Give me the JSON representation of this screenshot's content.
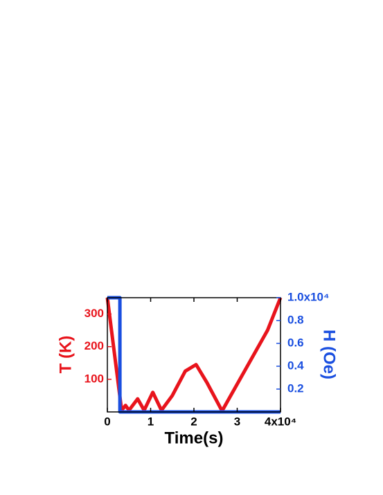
{
  "chart_data": {
    "type": "line",
    "xlabel": "Time(s)",
    "ylabel": "T (K)",
    "y2label": "H (Oe)",
    "xlim": [
      0,
      40000
    ],
    "xticks": [
      0,
      {
        "value": 10000,
        "label": "1"
      },
      {
        "value": 20000,
        "label": "2"
      },
      {
        "value": 30000,
        "label": "3"
      },
      {
        "value": 40000,
        "label": "4x10⁴"
      }
    ],
    "ylim": [
      0,
      350
    ],
    "yticks": [
      100,
      200,
      300
    ],
    "y2lim": [
      0,
      10000
    ],
    "y2ticks": [
      {
        "value": 2000,
        "label": "0.2"
      },
      {
        "value": 4000,
        "label": "0.4"
      },
      {
        "value": 6000,
        "label": "0.6"
      },
      {
        "value": 8000,
        "label": "0.8"
      },
      {
        "value": 10000,
        "label": "1.0x10⁴"
      }
    ],
    "series": [
      {
        "name": "T",
        "color": "#e8141c",
        "x": [
          0,
          3300,
          4200,
          5000,
          7000,
          8500,
          10500,
          12500,
          15000,
          18000,
          20500,
          23000,
          26500,
          37000,
          40000
        ],
        "values": [
          350,
          5,
          20,
          5,
          40,
          5,
          60,
          5,
          50,
          125,
          145,
          90,
          3,
          250,
          350
        ]
      },
      {
        "name": "H",
        "color": "#1a4fe0",
        "axis": "y2",
        "x": [
          0,
          2900,
          2900,
          40000
        ],
        "values": [
          10000,
          10000,
          0,
          0
        ]
      }
    ]
  }
}
